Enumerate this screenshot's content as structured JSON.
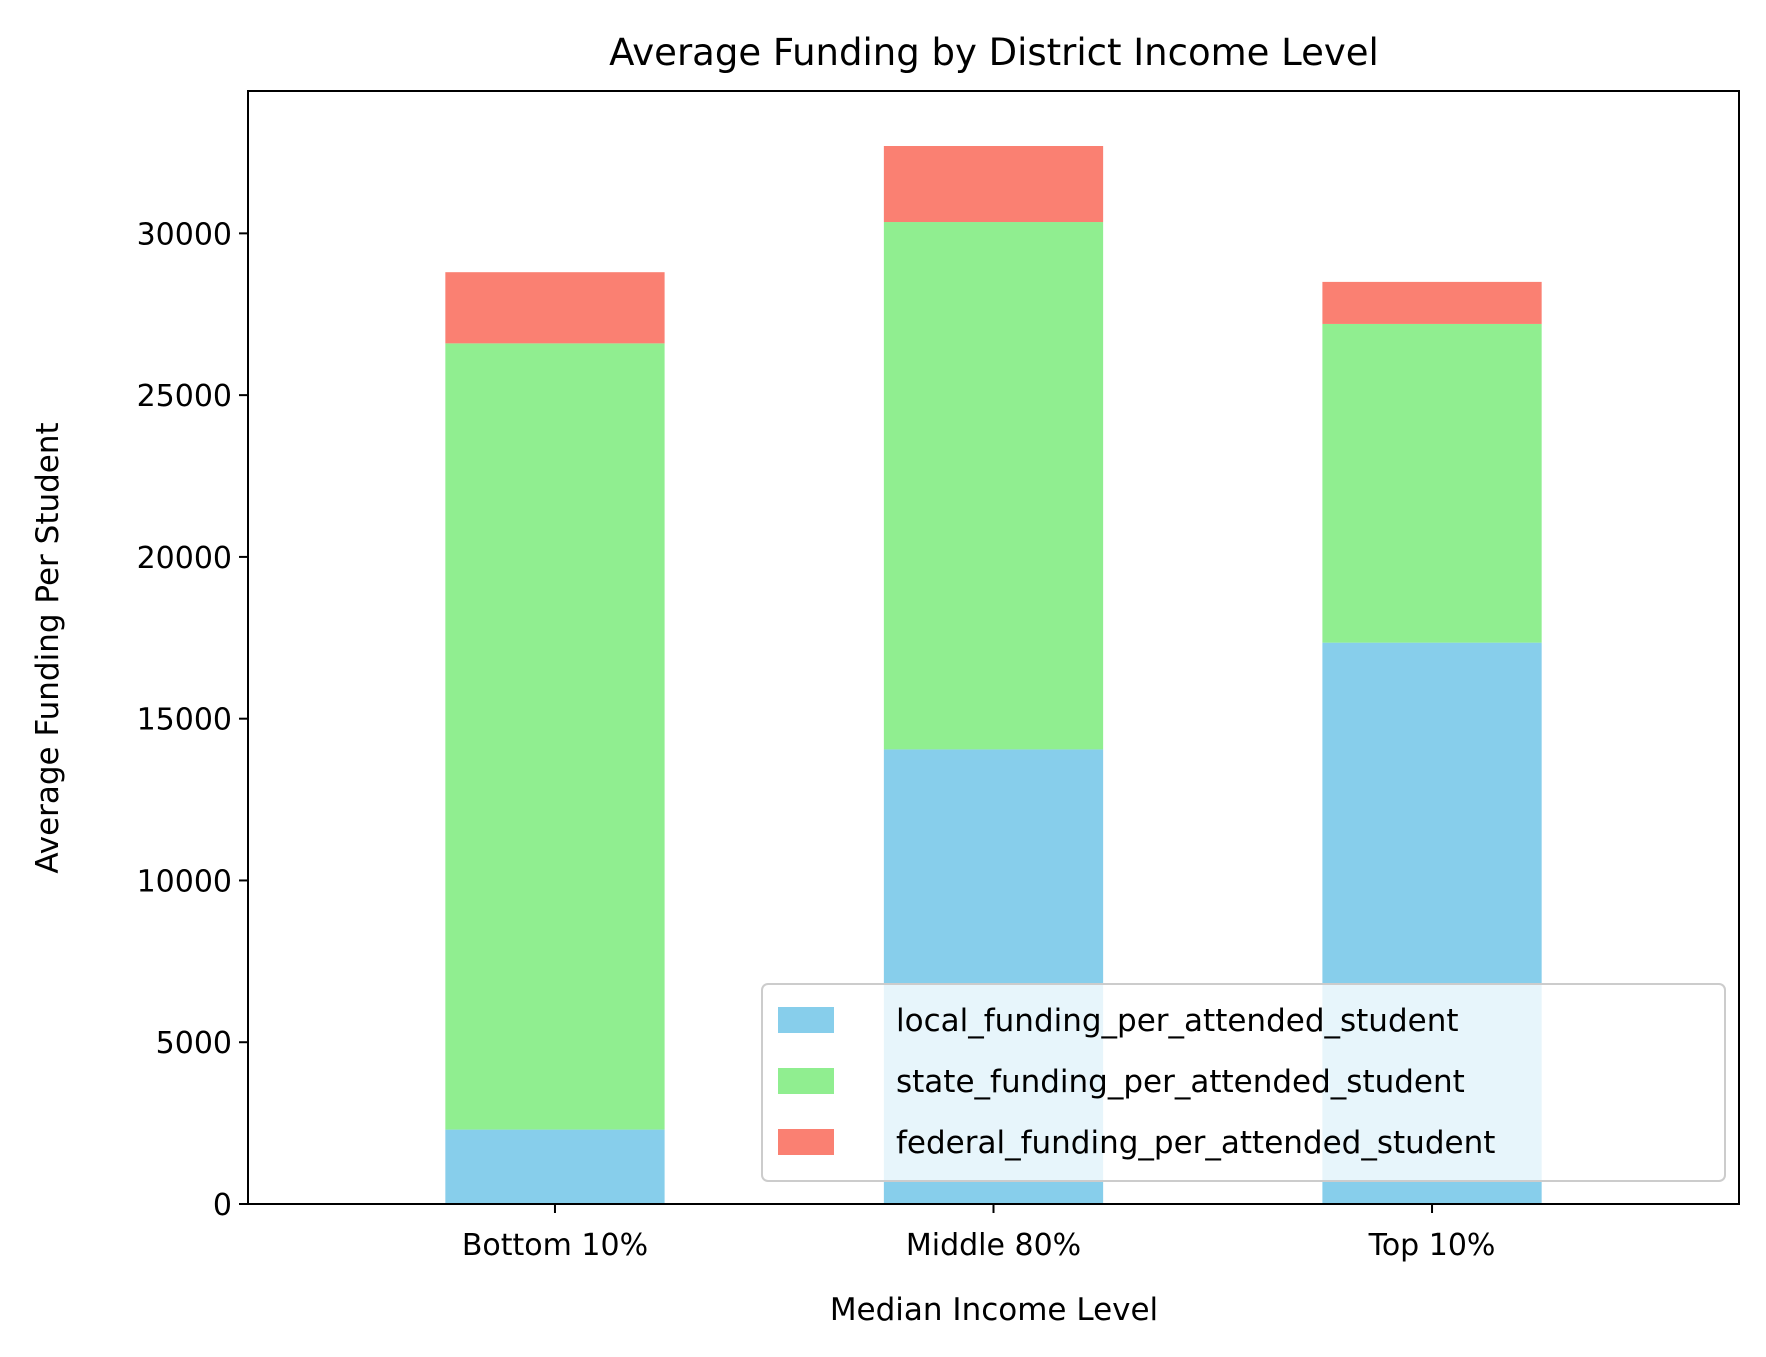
{
  "chart_data": {
    "type": "bar",
    "stacked": true,
    "title": "Average Funding by District Income Level",
    "xlabel": "Median Income Level",
    "ylabel": "Average Funding Per Student",
    "categories": [
      "Bottom 10%",
      "Middle 80%",
      "Top 10%"
    ],
    "ylim": [
      0,
      34400
    ],
    "yticks": [
      0,
      5000,
      10000,
      15000,
      20000,
      25000,
      30000
    ],
    "series": [
      {
        "name": "local_funding_per_attended_student",
        "color": "#87ceeb",
        "values": [
          2300,
          14050,
          17350
        ]
      },
      {
        "name": "state_funding_per_attended_student",
        "color": "#90ee90",
        "values": [
          24300,
          16300,
          9850
        ]
      },
      {
        "name": "federal_funding_per_attended_student",
        "color": "#fa8072",
        "values": [
          2200,
          2350,
          1300
        ]
      }
    ],
    "legend": {
      "position": "bottom-right"
    },
    "grid": false
  }
}
